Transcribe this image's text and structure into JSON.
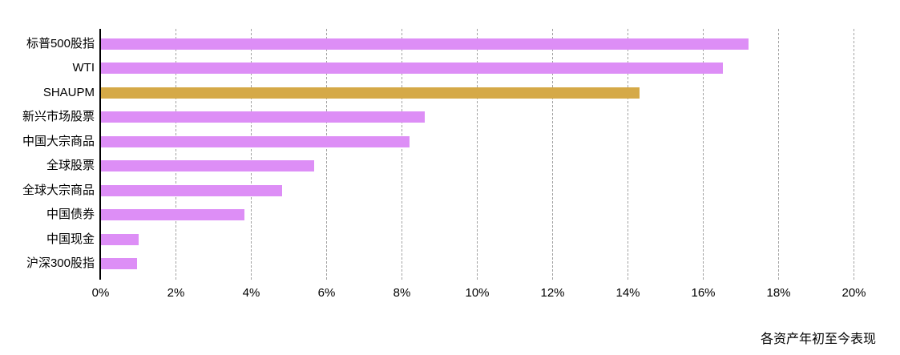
{
  "chart_data": {
    "type": "bar",
    "orientation": "horizontal",
    "title": "",
    "caption": "各资产年初至今表现",
    "categories": [
      "标普500股指",
      "WTI",
      "SHAUPM",
      "新兴市场股票",
      "中国大宗商品",
      "全球股票",
      "全球大宗商品",
      "中国债券",
      "中国现金",
      "沪深300股指"
    ],
    "values": [
      17.2,
      16.5,
      14.3,
      8.6,
      8.2,
      5.65,
      4.8,
      3.8,
      1.0,
      0.95
    ],
    "unit": "%",
    "highlight_index": 2,
    "bar_color": "#dd8ef6",
    "highlight_color": "#d5a947",
    "gridline_color": "#a3a3a3",
    "axis_color": "#000000",
    "xlim": [
      0,
      20
    ],
    "x_tick_step": 2,
    "x_ticks": [
      "0%",
      "2%",
      "4%",
      "6%",
      "8%",
      "10%",
      "12%",
      "14%",
      "16%",
      "18%",
      "20%"
    ],
    "grid": "vertical-dashed",
    "legend": "none"
  }
}
